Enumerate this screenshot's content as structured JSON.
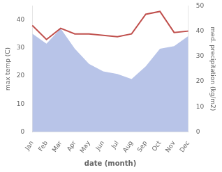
{
  "chart_data": {
    "type": "line",
    "categories": [
      "Jan",
      "Feb",
      "Mar",
      "Apr",
      "May",
      "Jun",
      "Jul",
      "Aug",
      "Sep",
      "Oct",
      "Nov",
      "Dec"
    ],
    "series": [
      {
        "type": "area",
        "axis": "y2",
        "color": "#b8c4e8",
        "values": [
          39,
          35,
          41,
          33,
          27,
          24,
          23,
          21,
          26,
          33,
          34,
          38
        ]
      },
      {
        "type": "line",
        "color": "#c0504d",
        "values": [
          38,
          33,
          37,
          35,
          35,
          34.5,
          34,
          35,
          42,
          43,
          35.5,
          36
        ]
      }
    ],
    "xlabel": "date (month)",
    "ylabel": "max temp (C)",
    "y2label": "med. precipitation (kg/m2)",
    "ylim": [
      0,
      45
    ],
    "yticks": [
      0,
      10,
      20,
      30,
      40
    ],
    "y2lim": [
      0,
      50
    ],
    "y2ticks": [
      0,
      10,
      20,
      30,
      40,
      50
    ],
    "grid": false
  }
}
